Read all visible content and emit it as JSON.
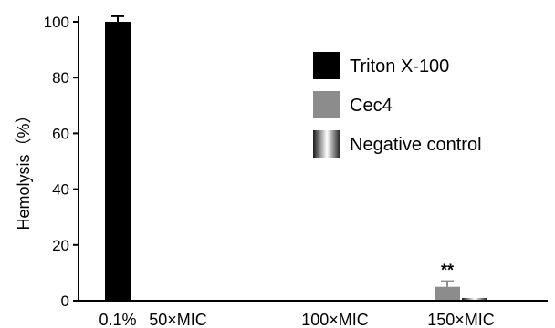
{
  "chart_data": {
    "type": "bar",
    "categories": [
      "0.1%",
      "50×MIC",
      "100×MIC",
      "150×MIC"
    ],
    "series": [
      {
        "name": "Triton X-100",
        "values": [
          100,
          null,
          null,
          null
        ],
        "errors": [
          2,
          null,
          null,
          null
        ],
        "color": "#000000"
      },
      {
        "name": "Cec4",
        "values": [
          null,
          0,
          0,
          5
        ],
        "errors": [
          null,
          0,
          0,
          2
        ],
        "color": "#8c8c8c"
      },
      {
        "name": "Negative control",
        "values": [
          null,
          0,
          0,
          1
        ],
        "errors": [
          null,
          0,
          0,
          0
        ],
        "color": "#b4b4b4"
      }
    ],
    "title": "",
    "xlabel": "",
    "ylabel": "Hemolysis（%）",
    "ylim": [
      0,
      100
    ],
    "yticks": [
      0,
      20,
      40,
      60,
      80,
      100
    ],
    "grid": false,
    "legend": "top-right",
    "annotations": [
      {
        "category": "150×MIC",
        "text": "**"
      }
    ]
  }
}
